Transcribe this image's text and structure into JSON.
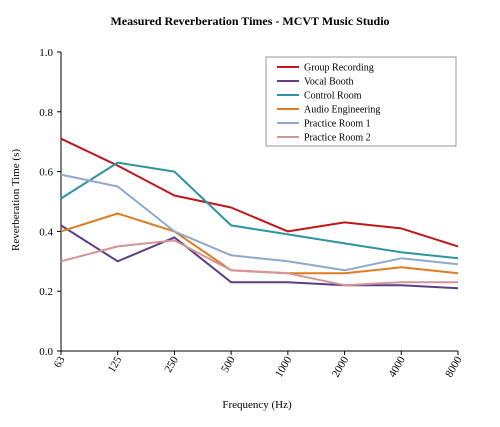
{
  "chart_data": {
    "type": "line",
    "title": "Measured Reverberation Times - MCVT Music Studio",
    "xlabel": "Frequency (Hz)",
    "ylabel": "Reverberation Time (s)",
    "categories": [
      "63",
      "125",
      "250",
      "500",
      "1000",
      "2000",
      "4000",
      "8000"
    ],
    "yticks": [
      "0.0",
      "0.2",
      "0.4",
      "0.6",
      "0.8",
      "1.0"
    ],
    "ylim": [
      0,
      1
    ],
    "grid": false,
    "legend_position": "top-right",
    "series": [
      {
        "name": "Group Recording",
        "color": "#c0161b",
        "values": [
          0.71,
          0.62,
          0.52,
          0.48,
          0.4,
          0.43,
          0.41,
          0.35
        ]
      },
      {
        "name": "Vocal Booth",
        "color": "#5b3f86",
        "values": [
          0.42,
          0.3,
          0.38,
          0.23,
          0.23,
          0.22,
          0.22,
          0.21
        ]
      },
      {
        "name": "Control Room",
        "color": "#2e93a3",
        "values": [
          0.51,
          0.63,
          0.6,
          0.42,
          0.39,
          0.36,
          0.33,
          0.31
        ]
      },
      {
        "name": "Audio Engineering",
        "color": "#e07b24",
        "values": [
          0.4,
          0.46,
          0.4,
          0.27,
          0.26,
          0.26,
          0.28,
          0.26
        ]
      },
      {
        "name": "Practice Room 1",
        "color": "#8fa8cf",
        "values": [
          0.59,
          0.55,
          0.4,
          0.32,
          0.3,
          0.27,
          0.31,
          0.29
        ]
      },
      {
        "name": "Practice Room 2",
        "color": "#d4949a",
        "values": [
          0.3,
          0.35,
          0.37,
          0.27,
          0.26,
          0.22,
          0.23,
          0.23
        ]
      }
    ]
  }
}
